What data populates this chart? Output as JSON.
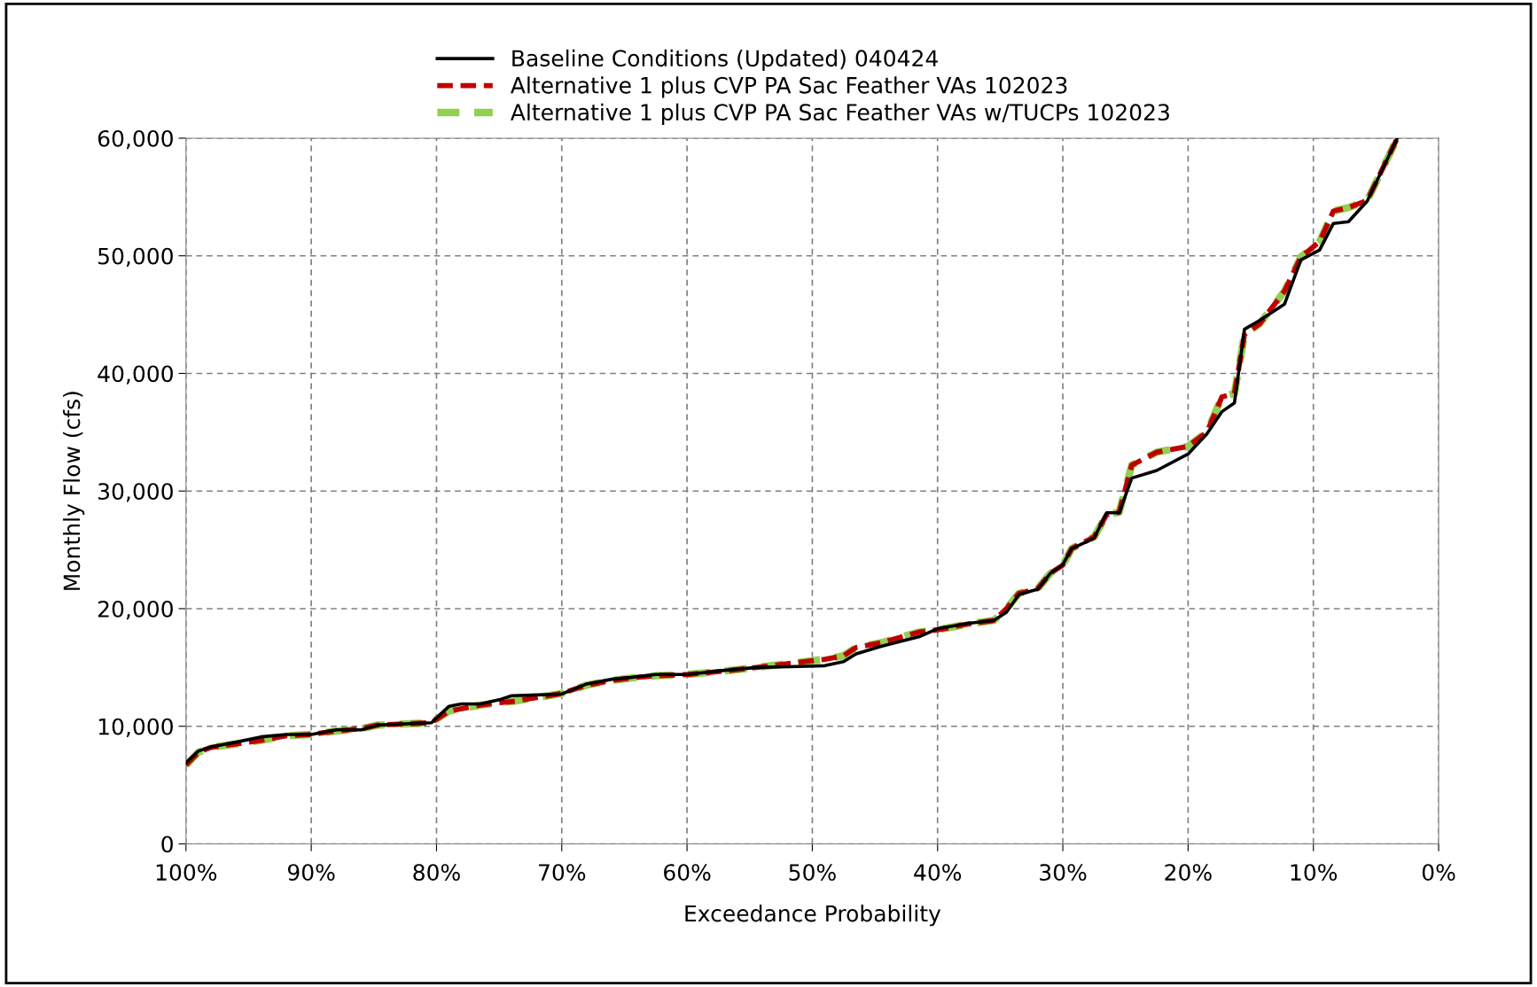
{
  "chart_data": {
    "type": "line",
    "xlabel": "Exceedance Probability",
    "ylabel": "Monthly Flow (cfs)",
    "xlim": [
      100,
      0
    ],
    "ylim": [
      0,
      60000
    ],
    "xticks": [
      {
        "value": 100,
        "label": "100%"
      },
      {
        "value": 90,
        "label": "90%"
      },
      {
        "value": 80,
        "label": "80%"
      },
      {
        "value": 70,
        "label": "70%"
      },
      {
        "value": 60,
        "label": "60%"
      },
      {
        "value": 50,
        "label": "50%"
      },
      {
        "value": 40,
        "label": "40%"
      },
      {
        "value": 30,
        "label": "30%"
      },
      {
        "value": 20,
        "label": "20%"
      },
      {
        "value": 10,
        "label": "10%"
      },
      {
        "value": 0,
        "label": "0%"
      }
    ],
    "yticks": [
      {
        "value": 0,
        "label": "0"
      },
      {
        "value": 10000,
        "label": "10,000"
      },
      {
        "value": 20000,
        "label": "20,000"
      },
      {
        "value": 30000,
        "label": "30,000"
      },
      {
        "value": 40000,
        "label": "40,000"
      },
      {
        "value": 50000,
        "label": "50,000"
      },
      {
        "value": 60000,
        "label": "60,000"
      }
    ],
    "grid": true,
    "legend": "top",
    "marker": "none",
    "x": [
      100,
      99,
      98,
      96,
      94,
      92,
      90,
      88,
      86,
      84.7,
      80.4,
      80,
      79,
      78,
      76.5,
      75,
      74,
      71,
      70,
      68,
      66,
      64.5,
      62.5,
      60,
      57,
      54.5,
      50.5,
      49,
      47.5,
      46.5,
      44.5,
      41.5,
      40,
      37.5,
      35.5,
      34.5,
      33.5,
      32,
      31,
      30,
      29.3,
      27.5,
      26.5,
      25.5,
      24.5,
      22.5,
      20,
      18.5,
      17.3,
      16.3,
      15.5,
      14.3,
      12.3,
      11,
      9.5,
      8.4,
      7.2,
      5.7,
      3.3
    ],
    "series": [
      {
        "name": "Baseline Conditions (Updated) 040424",
        "color": "#000000",
        "line_style": "solid",
        "values": [
          6900,
          7900,
          8250,
          8650,
          9100,
          9300,
          9300,
          9700,
          9700,
          10100,
          10300,
          10700,
          11700,
          11900,
          11900,
          12250,
          12600,
          12700,
          12750,
          13600,
          14000,
          14150,
          14400,
          14400,
          14750,
          15000,
          15100,
          15150,
          15500,
          16150,
          16800,
          17600,
          18300,
          18750,
          19000,
          19700,
          21200,
          21650,
          23000,
          23750,
          25100,
          26000,
          28150,
          28150,
          31100,
          31750,
          33150,
          34850,
          36750,
          37500,
          43750,
          44500,
          45900,
          49650,
          50500,
          52750,
          52900,
          54650,
          60000
        ]
      },
      {
        "name": "Alternative 1 plus CVP PA Sac Feather VAs 102023",
        "color": "#c00000",
        "line_style": "dashed",
        "values": [
          6700,
          7800,
          8200,
          8500,
          8800,
          9200,
          9300,
          9600,
          9800,
          10100,
          10300,
          10600,
          11300,
          11500,
          11800,
          12000,
          12100,
          12600,
          12800,
          13500,
          13900,
          14100,
          14300,
          14400,
          14700,
          15000,
          15500,
          15700,
          16000,
          16700,
          17100,
          18000,
          18200,
          18700,
          19000,
          20000,
          21300,
          21700,
          23000,
          23700,
          25100,
          26100,
          28000,
          28200,
          32200,
          33300,
          33800,
          35000,
          38000,
          38300,
          43300,
          44200,
          47000,
          49900,
          51200,
          53800,
          54100,
          54700,
          60000
        ]
      },
      {
        "name": "Alternative 1 plus CVP PA Sac Feather VAs w/TUCPs 102023",
        "color": "#92d050",
        "line_style": "dashed",
        "values": [
          6700,
          7800,
          8200,
          8500,
          8800,
          9200,
          9300,
          9600,
          9800,
          10100,
          10300,
          10600,
          11300,
          11500,
          11800,
          12000,
          12100,
          12600,
          12800,
          13500,
          13900,
          14100,
          14300,
          14400,
          14700,
          15000,
          15500,
          15700,
          16000,
          16700,
          17100,
          18000,
          18200,
          18700,
          19000,
          20000,
          21300,
          21700,
          23000,
          23700,
          25100,
          26100,
          28000,
          28200,
          32200,
          33300,
          33800,
          35000,
          38000,
          38300,
          43300,
          44200,
          47000,
          49900,
          51200,
          53800,
          54100,
          54700,
          60000
        ]
      }
    ]
  }
}
